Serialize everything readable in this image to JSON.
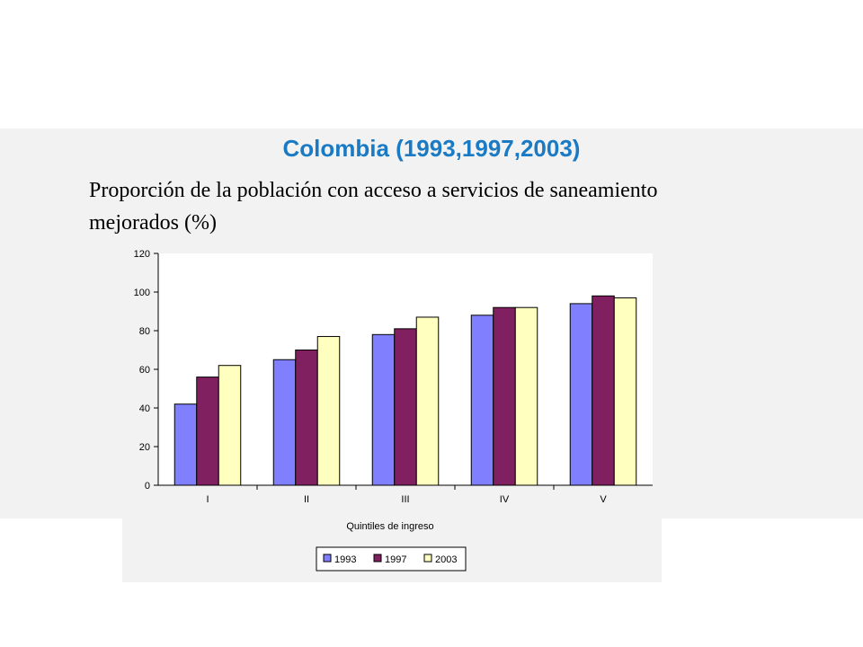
{
  "slide": {
    "title": "Colombia (1993,1997,2003)",
    "subtitle": "Proporción de la población con acceso a servicios de saneamiento mejorados (%)"
  },
  "colors": {
    "band": "#f2f2f2",
    "title": "#1a7ac4"
  },
  "chart_data": {
    "type": "bar",
    "title": "",
    "xlabel": "Quintiles de ingreso",
    "ylabel": "",
    "categories": [
      "I",
      "II",
      "III",
      "IV",
      "V"
    ],
    "ylim": [
      0,
      120
    ],
    "yticks": [
      0,
      20,
      40,
      60,
      80,
      100,
      120
    ],
    "grid": false,
    "legend_position": "bottom",
    "series": [
      {
        "name": "1993",
        "color": "#8080ff",
        "values": [
          42,
          65,
          78,
          88,
          94
        ]
      },
      {
        "name": "1997",
        "color": "#802060",
        "values": [
          56,
          70,
          81,
          92,
          98
        ]
      },
      {
        "name": "2003",
        "color": "#ffffc0",
        "values": [
          62,
          77,
          87,
          92,
          97
        ]
      }
    ]
  }
}
